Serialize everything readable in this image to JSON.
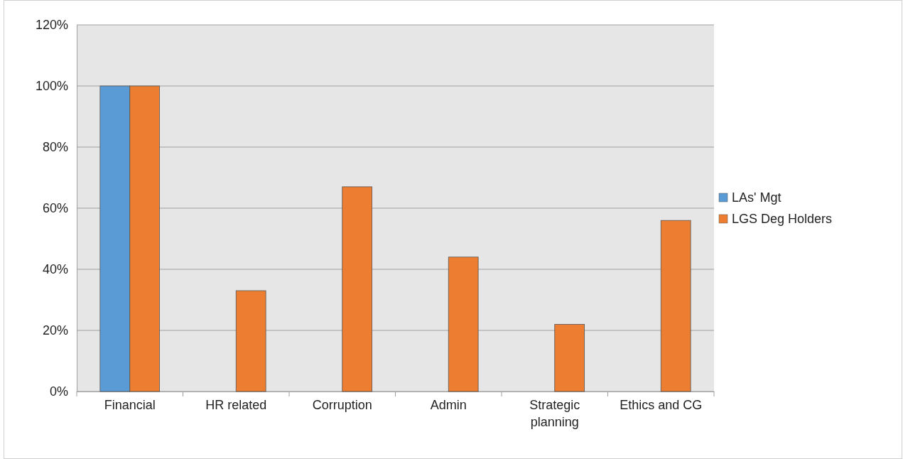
{
  "chart_data": {
    "type": "bar",
    "categories": [
      "Financial",
      "HR related",
      "Corruption",
      "Admin",
      "Strategic planning",
      "Ethics and CG"
    ],
    "series": [
      {
        "name": "LAs' Mgt",
        "color": "#5b9bd5",
        "values": [
          100,
          0,
          0,
          0,
          0,
          0
        ]
      },
      {
        "name": "LGS Deg Holders",
        "color": "#ed7d31",
        "values": [
          100,
          33,
          67,
          44,
          22,
          56
        ]
      }
    ],
    "ylim": [
      0,
      120
    ],
    "yticks": [
      {
        "value": 0,
        "label": "0%"
      },
      {
        "value": 20,
        "label": "20%"
      },
      {
        "value": 40,
        "label": "40%"
      },
      {
        "value": 60,
        "label": "60%"
      },
      {
        "value": 80,
        "label": "80%"
      },
      {
        "value": 100,
        "label": "100%"
      },
      {
        "value": 120,
        "label": "120%"
      }
    ],
    "grid": "y",
    "legend": "right"
  }
}
